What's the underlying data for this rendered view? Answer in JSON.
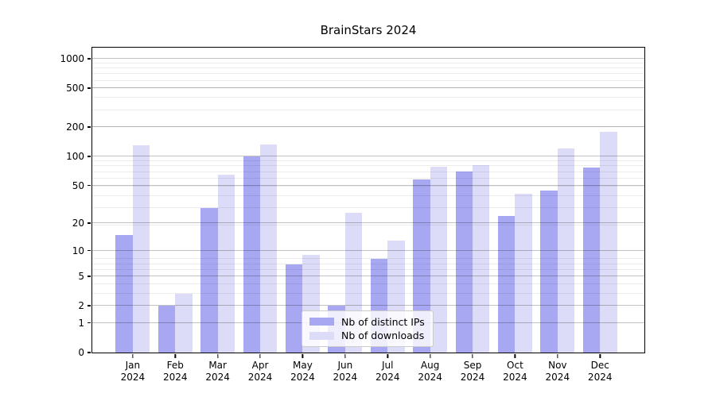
{
  "chart_data": {
    "type": "bar",
    "title": "BrainStars 2024",
    "xlabel": "",
    "ylabel": "",
    "x_year": "2024",
    "categories": [
      "Jan",
      "Feb",
      "Mar",
      "Apr",
      "May",
      "Jun",
      "Jul",
      "Aug",
      "Sep",
      "Oct",
      "Nov",
      "Dec"
    ],
    "series": [
      {
        "name": "Nb of distinct IPs",
        "color": "#a8a8f2",
        "values": [
          15,
          2,
          29,
          100,
          7,
          2,
          8,
          58,
          70,
          24,
          44,
          77
        ]
      },
      {
        "name": "Nb of downloads",
        "color": "#dcdcf8",
        "values": [
          130,
          3,
          65,
          133,
          9,
          26,
          13,
          78,
          82,
          41,
          120,
          180
        ]
      }
    ],
    "y_scale": "log1p",
    "ylim": [
      0,
      1290
    ],
    "y_ticks": [
      0,
      1,
      2,
      5,
      10,
      20,
      50,
      100,
      200,
      500,
      1000
    ],
    "y_tick_labels": [
      "0",
      "1",
      "2",
      "5",
      "10",
      "20",
      "50",
      "100",
      "200",
      "500",
      "1000"
    ],
    "y_minor_ticks": [
      3,
      4,
      6,
      7,
      8,
      19,
      29,
      39,
      49,
      59,
      69,
      79,
      89,
      199,
      299,
      399,
      499,
      599,
      699,
      799,
      899
    ],
    "grid": "on, drawn above bars",
    "legend_position": "lower center"
  }
}
